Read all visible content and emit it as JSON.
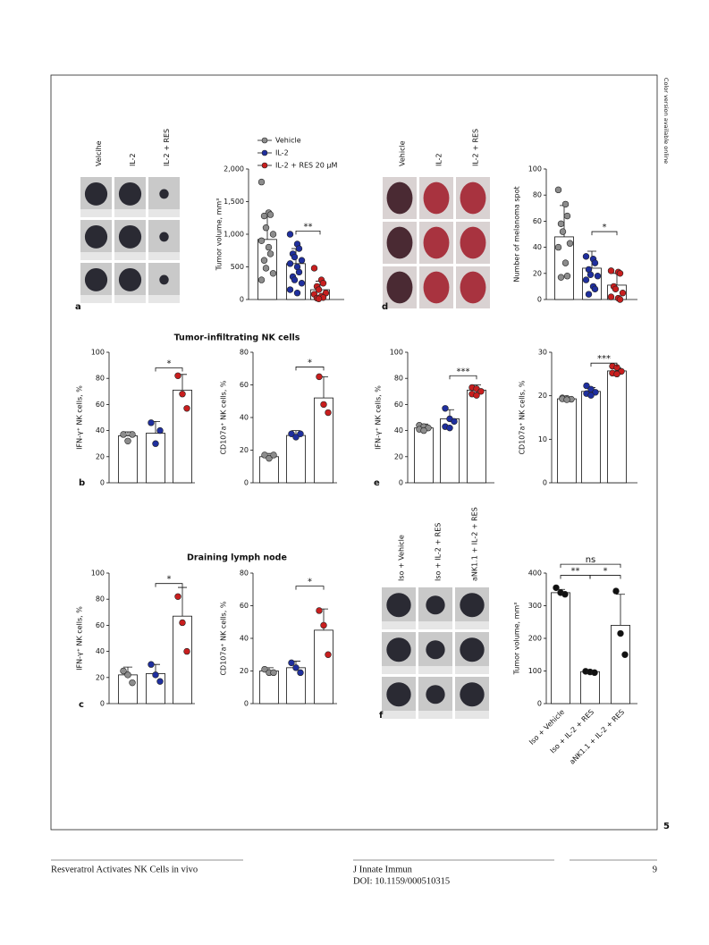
{
  "side_note": "Color version available online",
  "figure_number": "5",
  "sections": [
    "Tumor-infiltrating NK cells",
    "Draining lymph node"
  ],
  "footer": {
    "running_title": "Resveratrol Activates NK Cells in vivo",
    "journal": "J Innate Immun",
    "doi": "DOI: 10.1159/000510315",
    "page": "9"
  },
  "chart_data": [
    {
      "type": "bar",
      "panel": "a",
      "photo_labels": [
        "Velcihe",
        "IL-2",
        "IL-2 + RES"
      ],
      "ylabel": "Tumor volume, mm³",
      "ylim": [
        0,
        2000
      ],
      "yticks": [
        0,
        500,
        {
          "value": 1000,
          "label": "1,000"
        },
        {
          "value": 1500,
          "label": "1,500"
        },
        {
          "value": 2000,
          "label": "2,000"
        }
      ],
      "legend": [
        "Vehicle",
        "IL-2",
        "IL-2 + RES 20 μM"
      ],
      "colors": [
        "#8c8c8c",
        "#1f2f9e",
        "#c81e1e"
      ],
      "values": [
        920,
        550,
        150
      ],
      "errors": [
        400,
        230,
        130
      ],
      "points": [
        [
          1800,
          1330,
          1300,
          1280,
          1100,
          1000,
          900,
          800,
          700,
          600,
          480,
          400,
          300
        ],
        [
          1000,
          850,
          780,
          700,
          650,
          600,
          550,
          500,
          420,
          350,
          300,
          250,
          150,
          100
        ],
        [
          480,
          300,
          250,
          200,
          150,
          100,
          80,
          50,
          30,
          20,
          10
        ]
      ],
      "annotations": [
        "**"
      ]
    },
    {
      "type": "bar",
      "panel": "d",
      "photo_labels": [
        "Vehicle",
        "IL-2",
        "IL-2 + RES"
      ],
      "ylabel": "Number of melanoma spot",
      "ylim": [
        0,
        100
      ],
      "yticks": [
        0,
        20,
        40,
        60,
        80,
        100
      ],
      "colors": [
        "#8c8c8c",
        "#1f2f9e",
        "#c81e1e"
      ],
      "values": [
        48,
        24,
        11
      ],
      "errors": [
        24,
        13,
        9
      ],
      "points": [
        [
          84,
          73,
          64,
          58,
          52,
          43,
          40,
          28,
          18,
          17
        ],
        [
          33,
          31,
          28,
          23,
          19,
          18,
          15,
          10,
          8,
          4
        ],
        [
          22,
          21,
          20,
          10,
          8,
          5,
          2,
          1,
          0
        ]
      ],
      "annotations": [
        "*"
      ]
    },
    {
      "type": "bar",
      "panel": "b",
      "ylabel": "IFN-γ⁺ NK cells, %",
      "ylim": [
        0,
        100
      ],
      "yticks": [
        0,
        20,
        40,
        60,
        80,
        100
      ],
      "colors": [
        "#8c8c8c",
        "#1f2f9e",
        "#c81e1e"
      ],
      "values": [
        36,
        38,
        71
      ],
      "errors": [
        3,
        9,
        12
      ],
      "points": [
        [
          37,
          32,
          37
        ],
        [
          46,
          30,
          40
        ],
        [
          82,
          68,
          57
        ]
      ],
      "annotations": [
        "*"
      ]
    },
    {
      "type": "bar",
      "ylabel": "CD107a⁺ NK cells, %",
      "ylim": [
        0,
        80
      ],
      "yticks": [
        0,
        20,
        40,
        60,
        80
      ],
      "colors": [
        "#8c8c8c",
        "#1f2f9e",
        "#c81e1e"
      ],
      "values": [
        16,
        29,
        52
      ],
      "errors": [
        2,
        3,
        13
      ],
      "points": [
        [
          17,
          15,
          17
        ],
        [
          30,
          28,
          30
        ],
        [
          65,
          48,
          43
        ]
      ],
      "annotations": [
        "*"
      ]
    },
    {
      "type": "bar",
      "panel": "e",
      "ylabel": "IFN-γ⁺ NK cells, %",
      "ylim": [
        0,
        100
      ],
      "yticks": [
        0,
        20,
        40,
        60,
        80,
        100
      ],
      "colors": [
        "#8c8c8c",
        "#1f2f9e",
        "#c81e1e"
      ],
      "values": [
        42,
        49,
        71
      ],
      "errors": [
        3,
        7,
        4
      ],
      "points": [
        [
          44,
          43,
          42,
          41,
          40
        ],
        [
          57,
          49,
          47,
          43,
          42
        ],
        [
          73,
          72,
          70,
          68,
          67
        ]
      ],
      "annotations": [
        "***"
      ]
    },
    {
      "type": "bar",
      "ylabel": "CD107a⁺ NK cells, %",
      "ylim": [
        0,
        30
      ],
      "yticks": [
        0,
        10,
        20,
        30
      ],
      "colors": [
        "#8c8c8c",
        "#1f2f9e",
        "#c81e1e"
      ],
      "values": [
        19.3,
        21.0,
        25.7
      ],
      "errors": [
        0.4,
        0.9,
        0.7
      ],
      "points": [
        [
          19.5,
          19.4,
          19.2,
          19.3,
          19.1
        ],
        [
          22.3,
          21.5,
          20.8,
          20.5,
          20.1
        ],
        [
          26.8,
          26.5,
          25.6,
          25.2,
          25.0
        ]
      ],
      "annotations": [
        "***"
      ]
    },
    {
      "type": "bar",
      "panel": "c",
      "ylabel": "IFN-γ⁺ NK cells, %",
      "ylim": [
        0,
        100
      ],
      "yticks": [
        0,
        20,
        40,
        60,
        80,
        100
      ],
      "colors": [
        "#8c8c8c",
        "#1f2f9e",
        "#c81e1e"
      ],
      "values": [
        22,
        23,
        67
      ],
      "errors": [
        6,
        7,
        22
      ],
      "points": [
        [
          25,
          22,
          16
        ],
        [
          30,
          22,
          17
        ],
        [
          82,
          62,
          40
        ]
      ],
      "annotations": [
        "*"
      ]
    },
    {
      "type": "bar",
      "ylabel": "CD107a⁺ NK cells, %",
      "ylim": [
        0,
        80
      ],
      "yticks": [
        0,
        20,
        40,
        60,
        80
      ],
      "colors": [
        "#8c8c8c",
        "#1f2f9e",
        "#c81e1e"
      ],
      "values": [
        20,
        22,
        45
      ],
      "errors": [
        2,
        4,
        13
      ],
      "points": [
        [
          21,
          19,
          19
        ],
        [
          25,
          22,
          19
        ],
        [
          57,
          48,
          30
        ]
      ],
      "annotations": [
        "*"
      ]
    },
    {
      "type": "bar",
      "panel": "f",
      "photo_labels": [
        "Iso + Vehicle",
        "Iso + IL-2 + RES",
        "aNK1.1 + IL-2 + RES"
      ],
      "categories": [
        "Iso + Vehicle",
        "Iso + IL-2 + RES",
        "aNK1.1 + IL-2 + RES"
      ],
      "ylabel": "Tumor volume, mm³",
      "ylim": [
        0,
        400
      ],
      "yticks": [
        0,
        100,
        200,
        300,
        400
      ],
      "colors": [
        "#111111",
        "#111111",
        "#111111"
      ],
      "values": [
        340,
        98,
        240
      ],
      "errors": [
        10,
        4,
        95
      ],
      "points": [
        [
          355,
          340,
          335
        ],
        [
          99,
          97,
          95
        ],
        [
          345,
          215,
          150
        ]
      ],
      "annotations": [
        "**",
        "*",
        "ns"
      ]
    }
  ]
}
